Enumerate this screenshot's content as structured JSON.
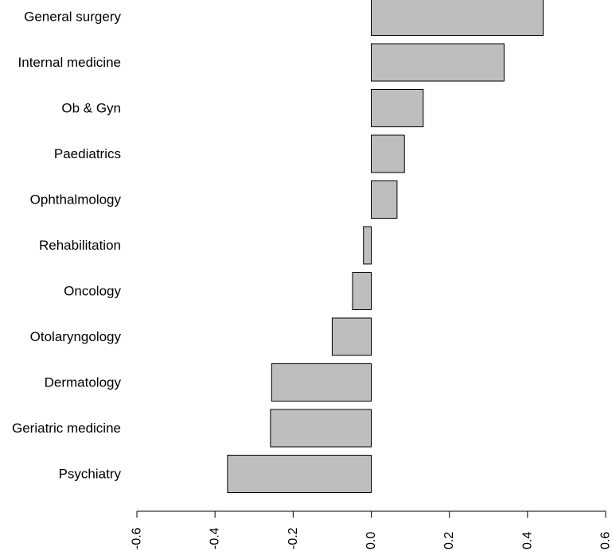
{
  "chart_data": {
    "type": "bar",
    "orientation": "horizontal",
    "categories": [
      "General surgery",
      "Internal medicine",
      "Ob & Gyn",
      "Paediatrics",
      "Ophthalmology",
      "Rehabilitation",
      "Oncology",
      "Otolaryngology",
      "Dermatology",
      "Geriatric medicine",
      "Psychiatry"
    ],
    "values": [
      0.44,
      0.34,
      0.133,
      0.085,
      0.066,
      -0.02,
      -0.048,
      -0.1,
      -0.255,
      -0.258,
      -0.368
    ],
    "title": "",
    "xlabel": "",
    "ylabel": "",
    "xlim": [
      -0.6,
      0.6
    ],
    "xticks": [
      -0.6,
      -0.4,
      -0.2,
      0.0,
      0.2,
      0.4,
      0.6
    ],
    "xtick_labels": [
      "-0.6",
      "-0.4",
      "-0.2",
      "0.0",
      "0.2",
      "0.4",
      "0.6"
    ],
    "grid": false,
    "legend": "none",
    "bar_color": "#bebebe",
    "bar_border_color": "#000000"
  }
}
